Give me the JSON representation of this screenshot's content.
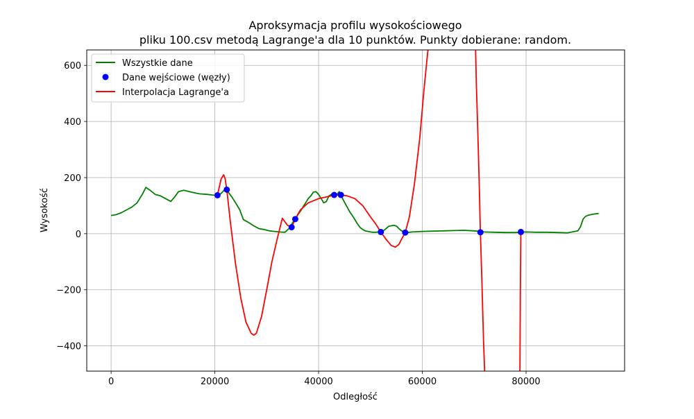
{
  "chart_data": {
    "type": "line",
    "title_line1": "Aproksymacja profilu wysokościowego",
    "title_line2": "pliku 100.csv metodą Lagrange'a dla 10 punktów. Punkty dobierane: random.",
    "xlabel": "Odległość",
    "ylabel": "Wysokość",
    "xlim": [
      -4700,
      99000
    ],
    "ylim": [
      -490,
      655
    ],
    "xticks": [
      0,
      20000,
      40000,
      60000,
      80000
    ],
    "yticks": [
      -400,
      -200,
      0,
      200,
      400,
      600
    ],
    "xtick_labels": [
      "0",
      "20000",
      "40000",
      "60000",
      "80000"
    ],
    "ytick_labels": [
      "−400",
      "−200",
      "0",
      "200",
      "400",
      "600"
    ],
    "grid": true,
    "legend_position": "top-left",
    "series": [
      {
        "name": "Wszystkie dane",
        "kind": "line",
        "color": "#008000",
        "x": [
          0,
          1000,
          2000,
          3000,
          4000,
          5000,
          6000,
          6700,
          7500,
          8500,
          9500,
          10500,
          11500,
          12200,
          13000,
          14000,
          15500,
          17000,
          18500,
          19500,
          20300,
          21000,
          21800,
          22500,
          23300,
          24000,
          24800,
          25500,
          26500,
          27500,
          28500,
          29500,
          30500,
          31500,
          32500,
          33500,
          34500,
          35000,
          35500,
          36000,
          36500,
          37000,
          37500,
          38000,
          38500,
          39000,
          39500,
          40000,
          40500,
          41000,
          41500,
          42000,
          42500,
          43000,
          43500,
          44000,
          44500,
          45000,
          45500,
          46000,
          46500,
          47000,
          47500,
          48000,
          48500,
          49000,
          49500,
          50000,
          50500,
          51000,
          51500,
          52000,
          52500,
          53000,
          53500,
          54000,
          54500,
          55000,
          55500,
          56000,
          56500,
          57000,
          57500,
          58000,
          60000,
          62000,
          64000,
          66000,
          68000,
          70000,
          72000,
          74000,
          76000,
          78000,
          80000,
          82000,
          84000,
          86000,
          88000,
          90000,
          90500,
          91000,
          91500,
          92000,
          93000,
          94000
        ],
        "y": [
          65,
          68,
          75,
          85,
          95,
          110,
          140,
          165,
          155,
          140,
          135,
          125,
          115,
          130,
          150,
          155,
          148,
          142,
          140,
          138,
          137,
          140,
          155,
          150,
          130,
          110,
          85,
          50,
          40,
          28,
          18,
          15,
          10,
          8,
          6,
          5,
          22,
          40,
          52,
          68,
          80,
          95,
          110,
          125,
          135,
          148,
          150,
          140,
          125,
          110,
          115,
          135,
          140,
          138,
          140,
          150,
          130,
          112,
          95,
          78,
          65,
          50,
          35,
          22,
          15,
          10,
          8,
          6,
          5,
          5,
          6,
          6,
          10,
          18,
          26,
          28,
          30,
          27,
          18,
          10,
          6,
          4,
          5,
          6,
          8,
          9,
          10,
          11,
          12,
          10,
          6,
          5,
          4,
          4,
          6,
          5,
          5,
          4,
          3,
          10,
          25,
          52,
          62,
          66,
          70,
          72
        ]
      },
      {
        "name": "Dane wejściowe (węzły)",
        "kind": "points",
        "color": "#0000ff",
        "x": [
          20500,
          22300,
          34800,
          35500,
          43000,
          44300,
          52000,
          56700,
          71200,
          79000
        ],
        "y": [
          137,
          157,
          23,
          52,
          138,
          138,
          6,
          4,
          5,
          6
        ]
      },
      {
        "name": "Interpolacja Lagrange'a",
        "kind": "line",
        "color": "#ff0000",
        "x": [
          20500,
          21200,
          21700,
          22000,
          22300,
          23000,
          24000,
          25000,
          26000,
          27000,
          27500,
          28000,
          29000,
          30000,
          31000,
          32000,
          33000,
          34000,
          34800,
          35500,
          36500,
          38000,
          40000,
          42000,
          43000,
          44300,
          45500,
          47000,
          48500,
          50000,
          51000,
          52000,
          53000,
          54000,
          54800,
          55500,
          56000,
          56700,
          57500,
          58500,
          59500,
          60300,
          61000,
          61500,
          70200,
          70400,
          70600,
          70800,
          71000,
          71200,
          71500,
          71800,
          72000,
          72100,
          78800,
          78900,
          79000,
          79050
        ],
        "y": [
          137,
          195,
          210,
          195,
          157,
          40,
          -110,
          -230,
          -315,
          -355,
          -362,
          -355,
          -295,
          -200,
          -100,
          -20,
          55,
          30,
          23,
          52,
          85,
          110,
          125,
          133,
          138,
          138,
          135,
          125,
          100,
          60,
          35,
          6,
          -20,
          -42,
          -48,
          -38,
          -20,
          4,
          60,
          180,
          340,
          510,
          640,
          720,
          720,
          540,
          420,
          300,
          160,
          5,
          -180,
          -380,
          -480,
          -560,
          -560,
          -200,
          6,
          6
        ]
      }
    ]
  }
}
